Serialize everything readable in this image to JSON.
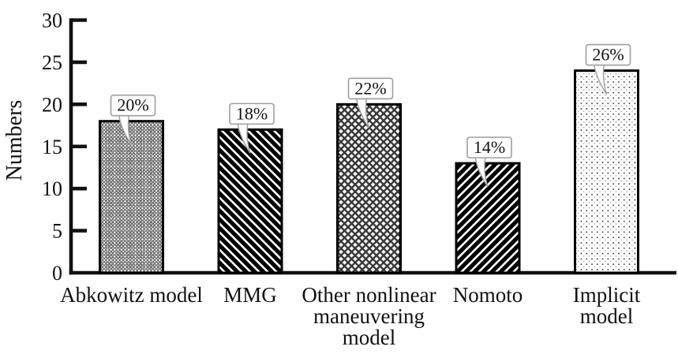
{
  "figure": {
    "background": "#ffffff"
  },
  "chart_data": {
    "type": "bar",
    "title": "",
    "ylabel": "Numbers",
    "xlabel": "",
    "ylim": [
      0,
      30
    ],
    "yticks": [
      0,
      5,
      10,
      15,
      20,
      25,
      30
    ],
    "grid": false,
    "legend": "none",
    "categories": [
      "Abkowitz model",
      "MMG",
      "Other nonlinear\nmaneuvering\nmodel",
      "Nomoto",
      "Implicit\nmodel"
    ],
    "values": [
      18,
      17,
      20,
      13,
      24
    ],
    "percent_labels": [
      "20%",
      "18%",
      "22%",
      "14%",
      "26%"
    ],
    "bar_patterns": [
      "dense-checker-weave",
      "diagonal-backslash",
      "diamond-crosshatch",
      "diagonal-slash",
      "dots"
    ],
    "colors": {
      "bar_edge": "#000000",
      "hatch_dark": "#3b3b3b",
      "axis": "#111111",
      "text": "#111111",
      "callout_border": "#9e9e9e",
      "callout_fill": "#ffffff",
      "background": "#ffffff"
    }
  }
}
